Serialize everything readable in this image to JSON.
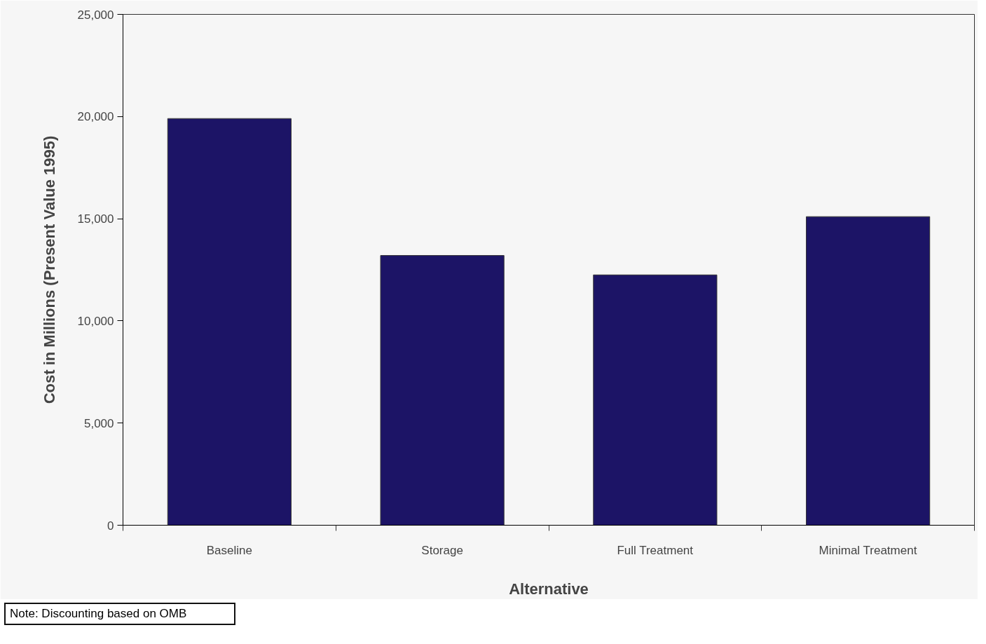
{
  "chart_data": {
    "type": "bar",
    "xlabel": "Alternative",
    "ylabel": "Cost in Millions (Present Value 1995)",
    "categories": [
      "Baseline",
      "Storage",
      "Full Treatment",
      "Minimal Treatment"
    ],
    "values": [
      19900,
      13200,
      12250,
      15100
    ],
    "color": "#1c1466",
    "ylim": [
      0,
      25000
    ],
    "yticks": [
      {
        "value": 0,
        "label": "0"
      },
      {
        "value": 5000,
        "label": "5,000"
      },
      {
        "value": 10000,
        "label": "10,000"
      },
      {
        "value": 15000,
        "label": "15,000"
      },
      {
        "value": 20000,
        "label": "20,000"
      },
      {
        "value": 25000,
        "label": "25,000"
      }
    ],
    "grid": false,
    "annotations": [
      "Note: Discounting based on OMB"
    ]
  }
}
